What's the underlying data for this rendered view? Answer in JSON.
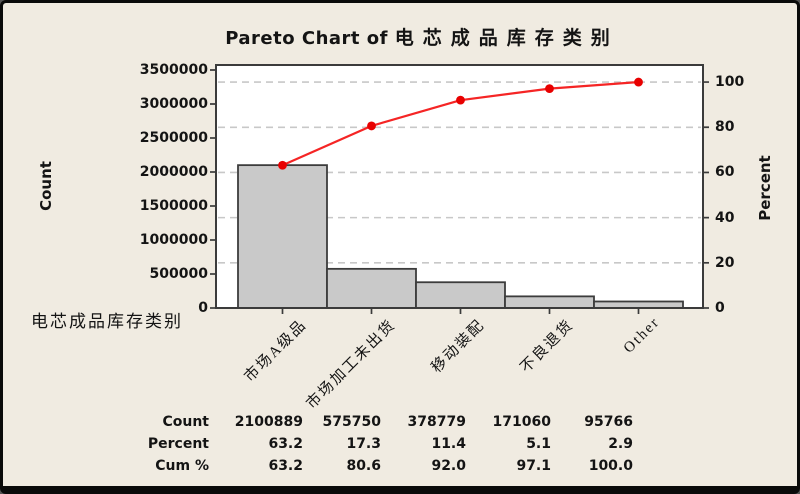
{
  "title": {
    "latin": "Pareto Chart of ",
    "cjk": "电芯成品库存类别"
  },
  "axes": {
    "left": {
      "label": "Count",
      "tick_values": [
        0,
        500000,
        1000000,
        1500000,
        2000000,
        2500000,
        3000000,
        3500000
      ],
      "tick_labels": [
        "0",
        "500000",
        "1000000",
        "1500000",
        "2000000",
        "2500000",
        "3000000",
        "3500000"
      ]
    },
    "right": {
      "label": "Percent",
      "tick_values": [
        0,
        20,
        40,
        60,
        80,
        100
      ],
      "tick_labels": [
        "0",
        "20",
        "40",
        "60",
        "80",
        "100"
      ]
    },
    "bottom": {
      "label": "电芯成品库存类别"
    }
  },
  "chart_data": {
    "type": "pareto",
    "title": "Pareto Chart of 电芯成品库存类别",
    "categories": [
      "市场A级品",
      "市场加工未出货",
      "移动装配",
      "不良退货",
      "Other"
    ],
    "series": [
      {
        "name": "Count",
        "values": [
          2100889,
          575750,
          378779,
          171060,
          95766
        ]
      },
      {
        "name": "Percent",
        "values": [
          63.2,
          17.3,
          11.4,
          5.1,
          2.9
        ]
      },
      {
        "name": "Cum %",
        "values": [
          63.2,
          80.6,
          92.0,
          97.1,
          100.0
        ]
      }
    ],
    "xlabel": "电芯成品库存类别",
    "ylabel_left": "Count",
    "ylabel_right": "Percent",
    "ylim_left": [
      0,
      3500000
    ],
    "ylim_right": [
      0,
      100
    ],
    "grid": "dashed-horizontal",
    "legend": "none"
  },
  "table": {
    "rows": [
      {
        "label": "Count",
        "values": [
          "2100889",
          "575750",
          "378779",
          "171060",
          "95766"
        ]
      },
      {
        "label": "Percent",
        "values": [
          "63.2",
          "17.3",
          "11.4",
          "5.1",
          "2.9"
        ]
      },
      {
        "label": "Cum %",
        "values": [
          "63.2",
          "80.6",
          "92.0",
          "97.1",
          "100.0"
        ]
      }
    ]
  },
  "colors": {
    "background": "#f0ebe1",
    "plot_background": "#ffffff",
    "grid": "#c8c8c8",
    "axis": "#3b3b3b",
    "bar_fill": "#c9c9c9",
    "bar_border": "#3c3c3c",
    "line": "#f52525",
    "marker": "#e80000",
    "text": "#141414"
  }
}
